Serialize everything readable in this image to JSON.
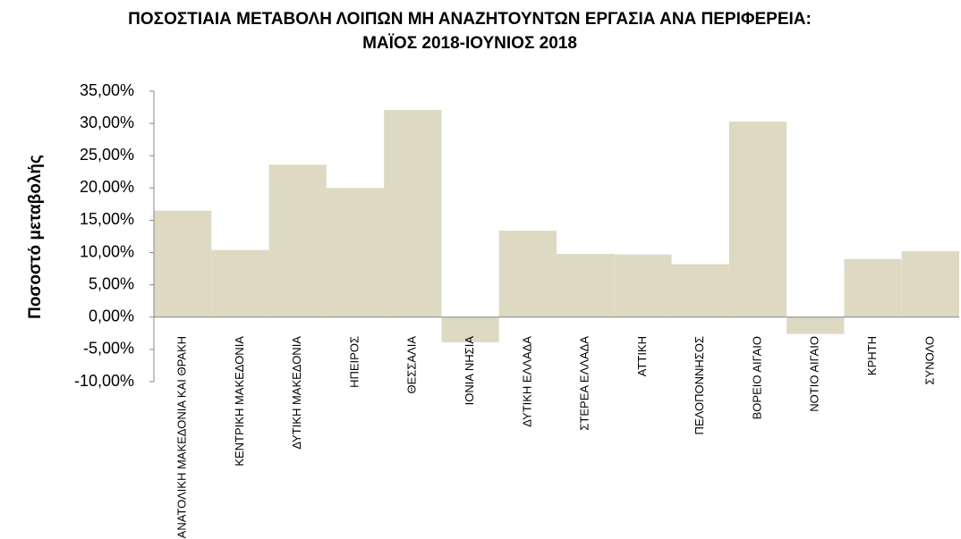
{
  "chart_data": {
    "type": "bar",
    "title": "ΠΟΣΟΣΤΙΑΙΑ ΜΕΤΑΒΟΛΗ ΛΟΙΠΩΝ ΜΗ ΑΝΑΖΗΤΟΥΝΤΩΝ ΕΡΓΑΣΙΑ ΑΝΑ ΠΕΡΙΦΕΡΕΙΑ: ΜΑΪΟΣ 2018-ΙΟΥΝΙΟΣ 2018",
    "y_label": "Ποσοστό μεταβολής",
    "categories": [
      "ΑΝΑΤΟΛΙΚΗ ΜΑΚΕΔΟΝΙΑ ΚΑΙ ΘΡΑΚΗ",
      "ΚΕΝΤΡΙΚΗ ΜΑΚΕΔΟΝΙΑ",
      "ΔΥΤΙΚΗ ΜΑΚΕΔΟΝΙΑ",
      "ΗΠΕΙΡΟΣ",
      "ΘΕΣΣΑΛΙΑ",
      "ΙΟΝΙΑ ΝΗΣΙΑ",
      "ΔΥΤΙΚΗ ΕΛΛΑΔΑ",
      "ΣΤΕΡΕΑ ΕΛΛΑΔΑ",
      "ΑΤΤΙΚΗ",
      "ΠΕΛΟΠΟΝΝΗΣΟΣ",
      "ΒΟΡΕΙΟ ΑΙΓΑΙΟ",
      "ΝΟΤΙΟ ΑΙΓΑΙΟ",
      "ΚΡΗΤΗ",
      "ΣΥΝΟΛΟ"
    ],
    "values": [
      16.5,
      10.4,
      23.6,
      20.0,
      32.1,
      -3.9,
      13.4,
      9.8,
      9.7,
      8.2,
      30.3,
      -2.6,
      9.0,
      10.2
    ],
    "color": "#ddd9c3",
    "ylim": [
      -10,
      35
    ],
    "yticks": [
      {
        "value": -10,
        "label": "-10,00%"
      },
      {
        "value": -5,
        "label": "-5,00%"
      },
      {
        "value": 0,
        "label": "0,00%"
      },
      {
        "value": 5,
        "label": "5,00%"
      },
      {
        "value": 10,
        "label": "10,00%"
      },
      {
        "value": 15,
        "label": "15,00%"
      },
      {
        "value": 20,
        "label": "20,00%"
      },
      {
        "value": 25,
        "label": "25,00%"
      },
      {
        "value": 30,
        "label": "30,00%"
      },
      {
        "value": 35,
        "label": "35,00%"
      }
    ],
    "grid": false
  }
}
